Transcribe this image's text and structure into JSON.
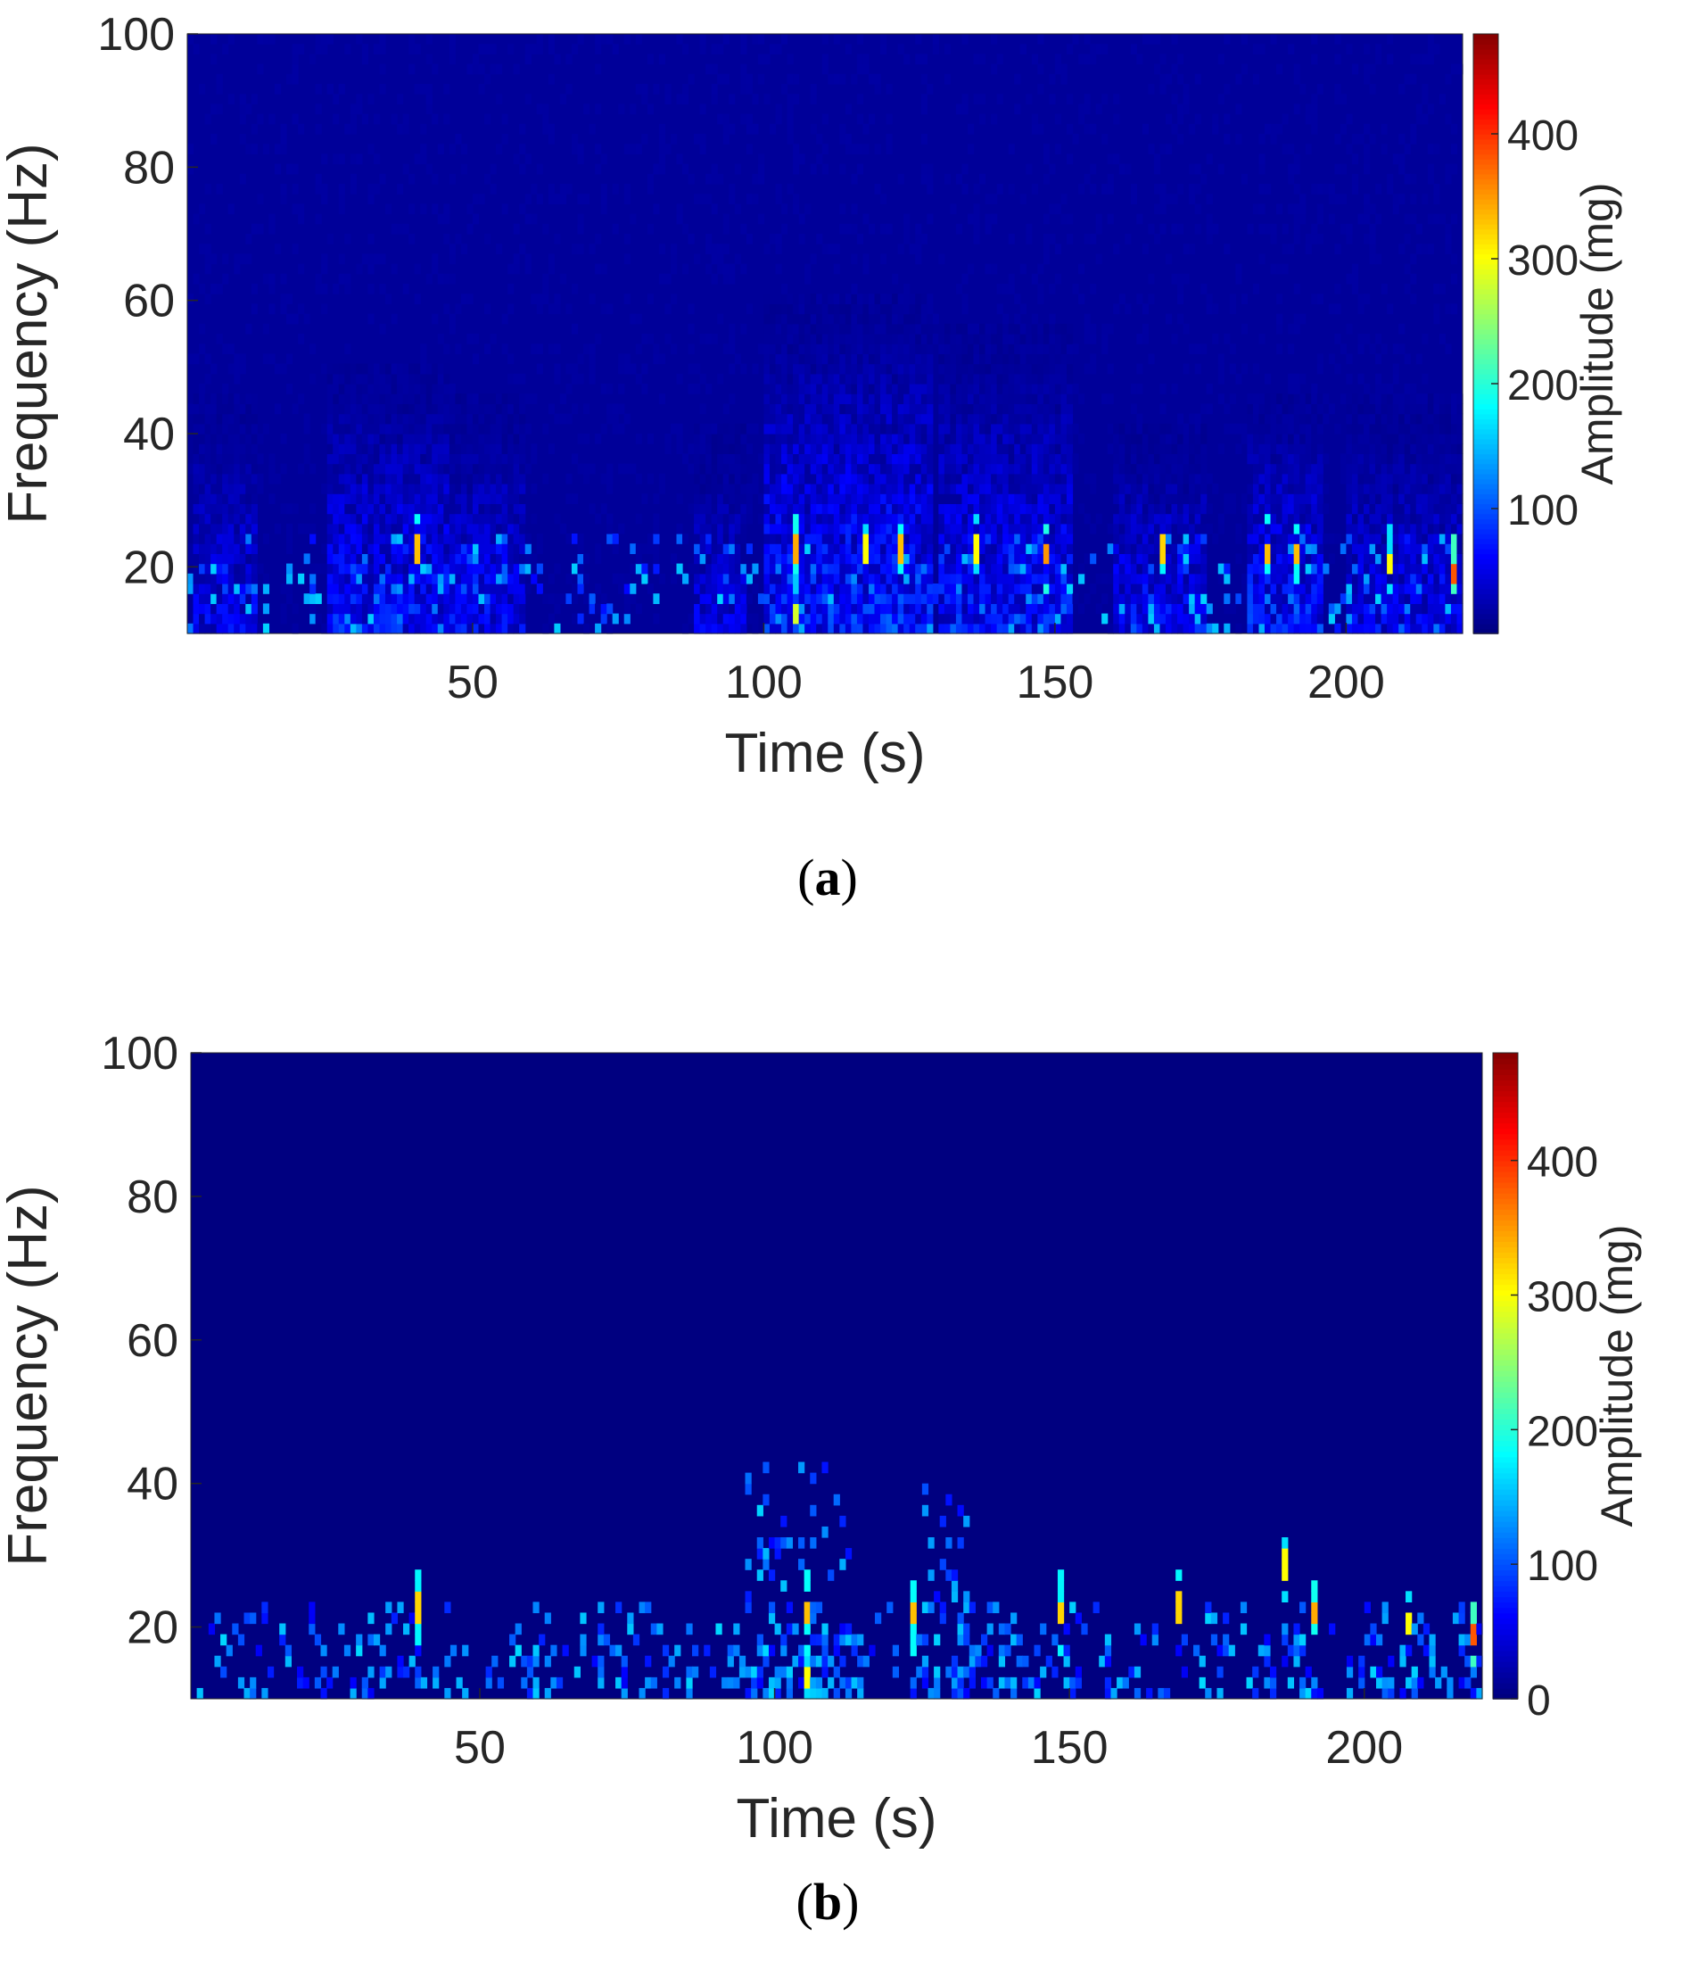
{
  "chart_data": [
    {
      "type": "heatmap",
      "panel_label": "a",
      "xlabel": "Time (s)",
      "ylabel": "Frequency (Hz)",
      "colorbar_label": "Amplitude (mg)",
      "xlim": [
        1,
        220
      ],
      "ylim": [
        10,
        100
      ],
      "xticks": [
        50,
        100,
        150,
        200
      ],
      "yticks": [
        20,
        40,
        60,
        80,
        100
      ],
      "colorbar_ticks": [
        100,
        200,
        300,
        400
      ],
      "clim": [
        0,
        480
      ],
      "colormap": "jet",
      "background_level": 12,
      "active_bands": [
        {
          "t": [
            2,
            12
          ],
          "fmax": 45,
          "level": 55
        },
        {
          "t": [
            25,
            45
          ],
          "fmax": 50,
          "level": 70
        },
        {
          "t": [
            46,
            58
          ],
          "fmax": 45,
          "level": 60
        },
        {
          "t": [
            88,
            96
          ],
          "fmax": 40,
          "level": 50
        },
        {
          "t": [
            100,
            128
          ],
          "fmax": 60,
          "level": 80
        },
        {
          "t": [
            130,
            152
          ],
          "fmax": 55,
          "level": 70
        },
        {
          "t": [
            160,
            175
          ],
          "fmax": 40,
          "level": 65
        },
        {
          "t": [
            183,
            195
          ],
          "fmax": 45,
          "level": 75
        },
        {
          "t": [
            200,
            220
          ],
          "fmax": 45,
          "level": 55
        }
      ],
      "peaks": [
        {
          "t": 40,
          "f": 22,
          "v": 330
        },
        {
          "t": 105,
          "f": 22,
          "v": 340
        },
        {
          "t": 105,
          "f": 12,
          "v": 280
        },
        {
          "t": 117,
          "f": 22,
          "v": 300
        },
        {
          "t": 123,
          "f": 22,
          "v": 330
        },
        {
          "t": 136,
          "f": 22,
          "v": 300
        },
        {
          "t": 148,
          "f": 21,
          "v": 350
        },
        {
          "t": 168,
          "f": 22,
          "v": 320
        },
        {
          "t": 186,
          "f": 21,
          "v": 330
        },
        {
          "t": 191,
          "f": 21,
          "v": 330
        },
        {
          "t": 207,
          "f": 20,
          "v": 300
        },
        {
          "t": 218,
          "f": 18,
          "v": 380
        }
      ]
    },
    {
      "type": "heatmap",
      "panel_label": "b",
      "xlabel": "Time (s)",
      "ylabel": "Frequency (Hz)",
      "colorbar_label": "Amplitude (mg)",
      "xlim": [
        1,
        220
      ],
      "ylim": [
        10,
        100
      ],
      "xticks": [
        50,
        100,
        150,
        200
      ],
      "yticks": [
        20,
        40,
        60,
        80,
        100
      ],
      "colorbar_ticks": [
        0,
        100,
        200,
        300,
        400
      ],
      "clim": [
        0,
        480
      ],
      "colormap": "jet",
      "background_level": 0,
      "active_bands": [
        {
          "t": [
            2,
            220
          ],
          "fmax": 23,
          "level": 90
        },
        {
          "t": [
            95,
            112
          ],
          "fmax": 42,
          "level": 90
        },
        {
          "t": [
            125,
            132
          ],
          "fmax": 41,
          "level": 90
        }
      ],
      "peaks": [
        {
          "t": 39,
          "f": 22,
          "v": 320
        },
        {
          "t": 105,
          "f": 21,
          "v": 330
        },
        {
          "t": 105,
          "f": 12,
          "v": 300
        },
        {
          "t": 123,
          "f": 21,
          "v": 330
        },
        {
          "t": 148,
          "f": 21,
          "v": 320
        },
        {
          "t": 168,
          "f": 22,
          "v": 320
        },
        {
          "t": 186,
          "f": 28,
          "v": 300
        },
        {
          "t": 191,
          "f": 21,
          "v": 340
        },
        {
          "t": 207,
          "f": 20,
          "v": 300
        },
        {
          "t": 218,
          "f": 18,
          "v": 380
        }
      ]
    }
  ]
}
